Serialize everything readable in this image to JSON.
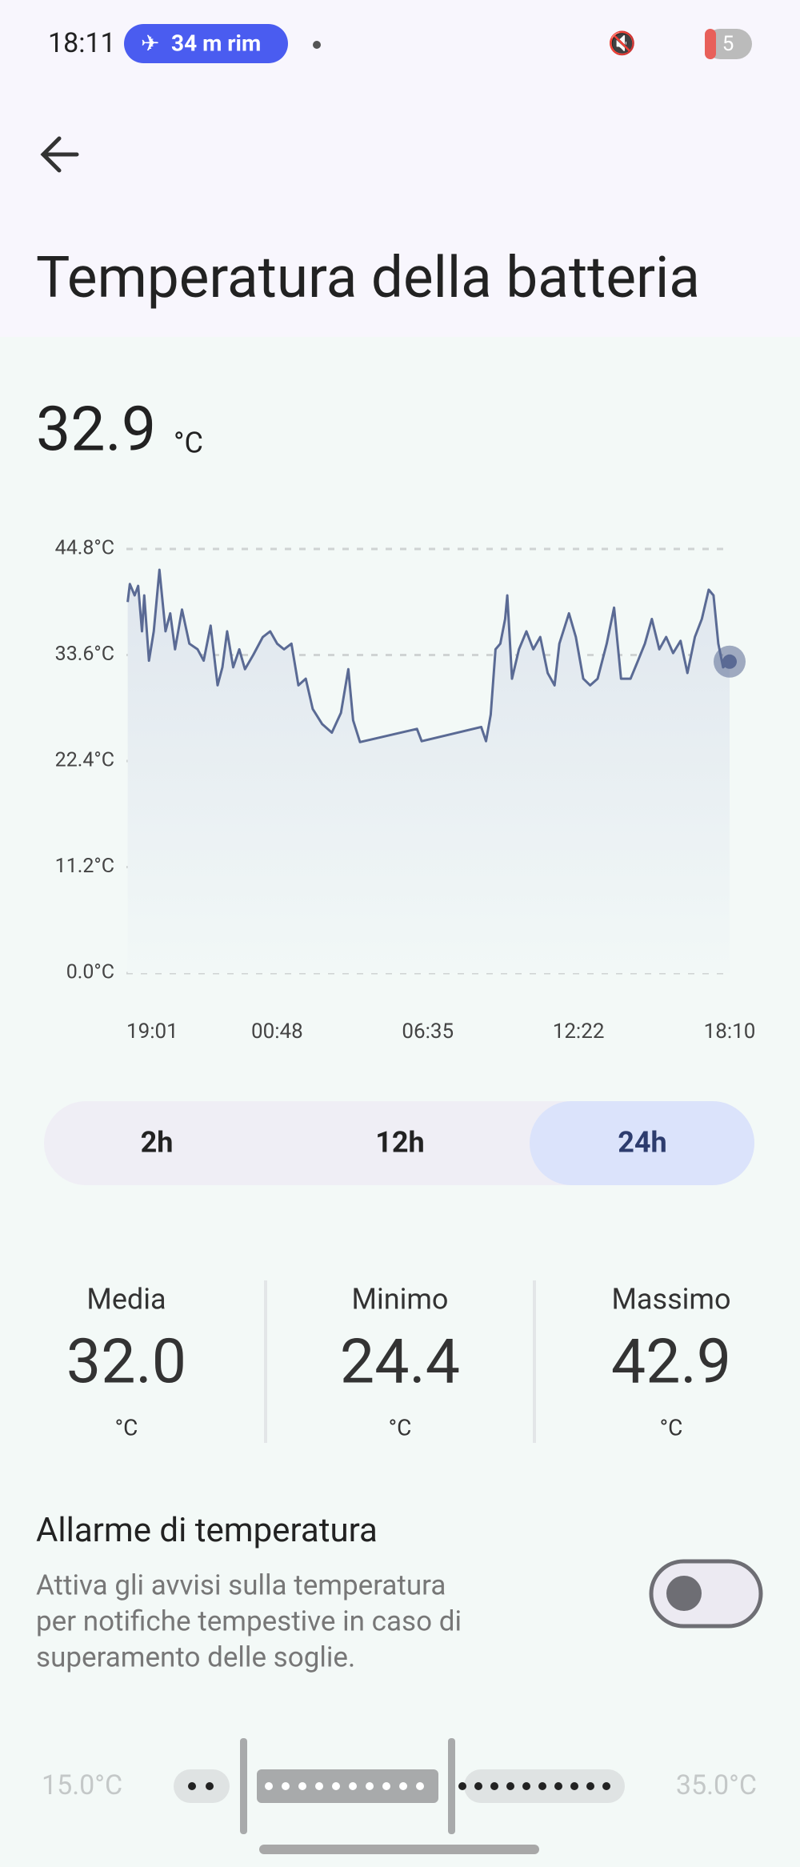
{
  "status_bar": {
    "time": "18:11",
    "pill": "34 m rim",
    "battery": "5"
  },
  "header": {
    "title": "Temperatura della batteria"
  },
  "current": {
    "value": "32.9",
    "unit": "°C"
  },
  "chart_data": {
    "type": "line",
    "color": "#5a6a94",
    "grid": true,
    "x": [
      3,
      8,
      19,
      27,
      36,
      41,
      52,
      63,
      76,
      90,
      101,
      112,
      128,
      145,
      164,
      178,
      194,
      210,
      221,
      232,
      246,
      260,
      273,
      292,
      314,
      331,
      347,
      363,
      380,
      396,
      413,
      429,
      451,
      473,
      494,
      511,
      522,
      538,
      669,
      680,
      817,
      828,
      839,
      850,
      861,
      872,
      877,
      888,
      904,
      921,
      937,
      953,
      970,
      986,
      997,
      1019,
      1035,
      1052,
      1068,
      1085,
      1106,
      1123,
      1139,
      1161,
      1178,
      1194,
      1210,
      1227,
      1243,
      1259,
      1276,
      1292,
      1309,
      1325,
      1341,
      1352,
      1363,
      1374,
      1389
    ],
    "values": [
      39.2,
      41.1,
      39.9,
      40.9,
      36.1,
      39.9,
      33.0,
      36.1,
      42.6,
      36.1,
      38.0,
      34.2,
      38.4,
      34.8,
      34.2,
      33.0,
      36.7,
      30.4,
      32.3,
      36.1,
      32.3,
      34.2,
      32.1,
      33.6,
      35.5,
      36.1,
      34.8,
      34.2,
      34.8,
      30.4,
      31.1,
      27.9,
      26.3,
      25.4,
      27.5,
      32.1,
      26.7,
      24.4,
      25.8,
      24.5,
      26.0,
      24.5,
      27.3,
      34.2,
      34.8,
      37.4,
      39.9,
      31.1,
      34.2,
      36.1,
      34.2,
      35.5,
      31.7,
      30.4,
      34.8,
      38.0,
      35.5,
      31.1,
      30.4,
      31.1,
      34.8,
      38.6,
      31.1,
      31.1,
      33.0,
      34.8,
      37.4,
      34.2,
      35.5,
      33.8,
      35.1,
      31.7,
      35.5,
      37.4,
      40.5,
      39.9,
      34.8,
      32.3,
      32.9
    ],
    "xlim": [
      0,
      1389
    ],
    "xticks": [
      {
        "value": 0,
        "label": "19:01"
      },
      {
        "value": 347,
        "label": "00:48"
      },
      {
        "value": 694,
        "label": "06:35"
      },
      {
        "value": 1041,
        "label": "12:22"
      },
      {
        "value": 1389,
        "label": "18:10"
      }
    ],
    "ylim": [
      0,
      44.8
    ],
    "yticks": [
      {
        "value": 0,
        "label": "0.0°C"
      },
      {
        "value": 11.2,
        "label": "11.2°C"
      },
      {
        "value": 22.4,
        "label": "22.4°C"
      },
      {
        "value": 33.6,
        "label": "33.6°C"
      },
      {
        "value": 44.8,
        "label": "44.8°C"
      }
    ]
  },
  "ranges": [
    "2h",
    "12h",
    "24h"
  ],
  "stats": [
    {
      "label": "Media",
      "value": "32.0",
      "unit": "°C"
    },
    {
      "label": "Minimo",
      "value": "24.4",
      "unit": "°C"
    },
    {
      "label": "Massimo",
      "value": "42.9",
      "unit": "°C"
    }
  ],
  "alarm": {
    "title": "Allarme di temperatura",
    "lines": [
      "Attiva gli avvisi sulla temperatura",
      "per notifiche tempestive in caso di",
      "superamento delle soglie."
    ]
  },
  "slider": {
    "min": "15.0°C",
    "max": "35.0°C"
  }
}
